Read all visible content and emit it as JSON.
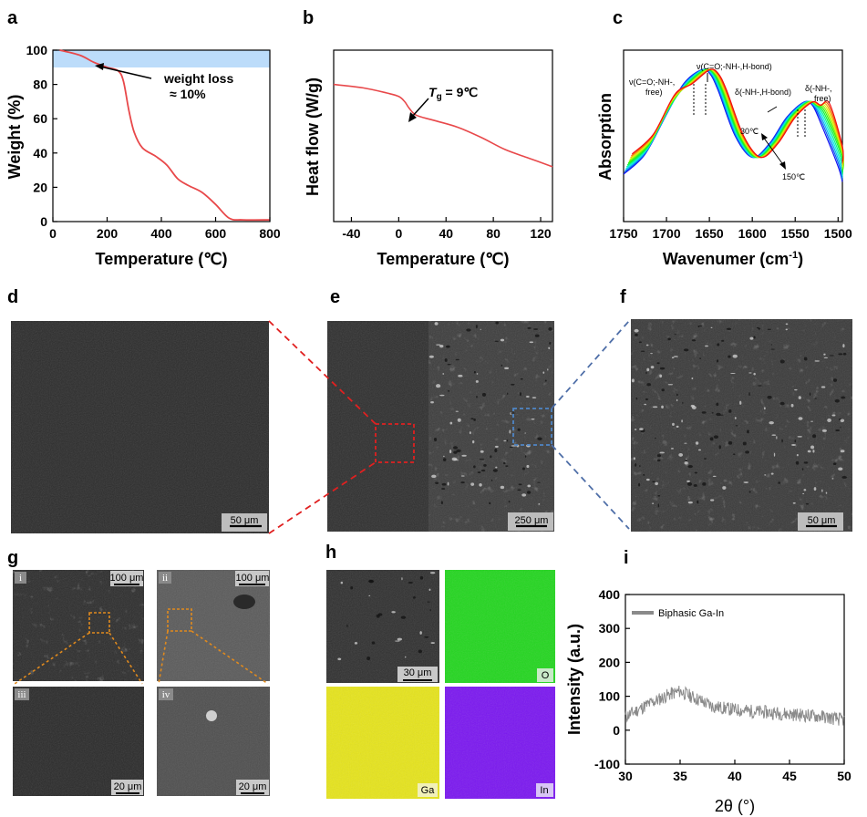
{
  "panel_labels": [
    "a",
    "b",
    "c",
    "d",
    "e",
    "f",
    "g",
    "h",
    "i"
  ],
  "panel_a": {
    "xlabel": "Temperature (℃)",
    "ylabel": "Weight (%)",
    "xticks": [
      "0",
      "200",
      "400",
      "600",
      "800"
    ],
    "yticks": [
      "0",
      "20",
      "40",
      "60",
      "80",
      "100"
    ],
    "annotation_line1": "weight loss",
    "annotation_line2": "≈ 10%",
    "band_color": "#bcdcfa",
    "curve_color": "#e8484a"
  },
  "panel_b": {
    "xlabel": "Temperature (℃)",
    "ylabel": "Heat flow (W/g)",
    "xticks": [
      "-40",
      "0",
      "40",
      "80",
      "120"
    ],
    "annotation_T": "T",
    "annotation_sub": "g",
    "annotation_val": " = 9℃"
  },
  "panel_c": {
    "xlabel": "Wavenumer (cm",
    "xlabel_sup": "-1",
    "xlabel_end": ")",
    "ylabel": "Absorption",
    "xticks": [
      "1750",
      "1700",
      "1650",
      "1600",
      "1550",
      "1500"
    ],
    "ann1a": "ν(C=O;-NH-,",
    "ann1b": "free)",
    "ann2": "ν(C=O;-NH-,H-bond)",
    "ann3": "δ(-NH-,H-bond)",
    "ann4a": "δ(-NH-,",
    "ann4b": "free)",
    "t_low": "30℃",
    "t_high": "150℃"
  },
  "panel_d": {
    "scale": "50 μm"
  },
  "panel_e": {
    "scale": "250 μm"
  },
  "panel_f": {
    "scale": "50 μm"
  },
  "panel_g": {
    "roman": [
      "i",
      "ii",
      "iii",
      "iv"
    ],
    "scales": [
      "100 μm",
      "100 μm",
      "20 μm",
      "20 μm"
    ]
  },
  "panel_h": {
    "scale": "30 μm",
    "elements": [
      "O",
      "Ga",
      "In"
    ],
    "colors": [
      "#22d61e",
      "#e6e41a",
      "#7a16f0"
    ]
  },
  "chart_data": [
    {
      "type": "line",
      "panel": "a",
      "xlabel": "Temperature (℃)",
      "ylabel": "Weight (%)",
      "xlim": [
        0,
        800
      ],
      "ylim": [
        0,
        100
      ],
      "x": [
        25,
        100,
        150,
        200,
        240,
        260,
        280,
        300,
        330,
        380,
        420,
        460,
        500,
        550,
        600,
        650,
        700,
        800
      ],
      "y": [
        100,
        97,
        93,
        90,
        88,
        82,
        65,
        52,
        43,
        38,
        33,
        25,
        21,
        17,
        10,
        2,
        1,
        1
      ]
    },
    {
      "type": "line",
      "panel": "b",
      "xlabel": "Temperature (℃)",
      "ylabel": "Heat flow (W/g)",
      "xlim": [
        -55,
        130
      ],
      "x": [
        -55,
        -30,
        -10,
        0,
        5,
        9,
        15,
        30,
        50,
        70,
        90,
        110,
        130
      ],
      "y": [
        0.8,
        0.78,
        0.75,
        0.73,
        0.7,
        0.66,
        0.62,
        0.59,
        0.55,
        0.49,
        0.42,
        0.37,
        0.32
      ]
    },
    {
      "type": "line",
      "panel": "c",
      "xlabel": "Wavenumer (cm-1)",
      "ylabel": "Absorption",
      "xlim": [
        1750,
        1495
      ],
      "series_count": 12,
      "temperature_range": [
        "30℃",
        "150℃"
      ],
      "peak_positions": [
        1660,
        1650,
        1540,
        1532
      ],
      "x": [
        1750,
        1725,
        1700,
        1680,
        1660,
        1650,
        1640,
        1620,
        1600,
        1580,
        1560,
        1540,
        1530,
        1520,
        1500,
        1495
      ],
      "y": [
        0.25,
        0.38,
        0.64,
        0.84,
        0.93,
        0.91,
        0.8,
        0.5,
        0.36,
        0.45,
        0.62,
        0.72,
        0.7,
        0.58,
        0.3,
        0.2
      ]
    },
    {
      "type": "line",
      "panel": "i",
      "xlabel": "2θ (°)",
      "ylabel": "Intensity (a.u.)",
      "xlim": [
        30,
        50
      ],
      "ylim": [
        -100,
        400
      ],
      "series": [
        {
          "name": "Biphasic Ga-In"
        }
      ],
      "x": [
        30,
        32,
        34,
        35,
        36,
        37,
        38,
        40,
        42,
        44,
        46,
        48,
        50
      ],
      "y": [
        40,
        75,
        105,
        115,
        100,
        85,
        70,
        60,
        55,
        50,
        45,
        40,
        30
      ]
    }
  ],
  "panel_i": {
    "xlabel": "2θ (°)",
    "ylabel": "Intensity (a.u.)",
    "xticks": [
      "30",
      "35",
      "40",
      "45",
      "50"
    ],
    "yticks": [
      "-100",
      "0",
      "100",
      "200",
      "300",
      "400"
    ],
    "legend": "Biphasic Ga-In",
    "color": "#8a8a8a"
  }
}
